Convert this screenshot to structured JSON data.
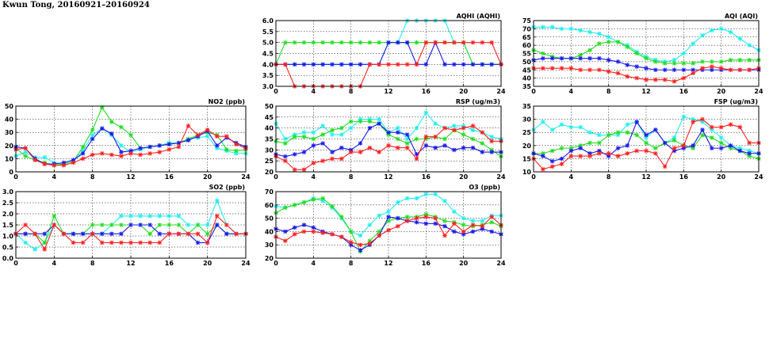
{
  "title": "Kwun Tong, 20160921–20160924",
  "colors": {
    "red": "#ff2020",
    "green": "#22dd22",
    "blue": "#1818ee",
    "cyan": "#22eeee",
    "frame": "#000000",
    "grid": "#000000"
  },
  "chart_data": [
    {
      "id": "aqhi",
      "type": "line",
      "title": "AQHI (AQHI)",
      "xlim": [
        0,
        24
      ],
      "xticks": [
        0,
        4,
        8,
        12,
        16,
        20,
        24
      ],
      "ylim": [
        3,
        6
      ],
      "yticks": [
        "3.0",
        "3.5",
        "4.0",
        "4.5",
        "5.0",
        "5.5",
        "6.0"
      ],
      "grid": true,
      "series": [
        {
          "color": "cyan",
          "values": [
            4,
            4,
            4,
            4,
            4,
            4,
            4,
            4,
            4,
            4,
            4,
            4,
            5,
            5,
            6,
            6,
            6,
            6,
            6,
            5,
            5,
            4,
            4,
            4,
            4
          ]
        },
        {
          "color": "green",
          "values": [
            4,
            5,
            5,
            5,
            5,
            5,
            5,
            5,
            5,
            5,
            5,
            5,
            5,
            5,
            5,
            5,
            5,
            5,
            5,
            5,
            5,
            4,
            4,
            4,
            4
          ]
        },
        {
          "color": "blue",
          "values": [
            4,
            4,
            4,
            4,
            4,
            4,
            4,
            4,
            4,
            4,
            4,
            4,
            5,
            5,
            5,
            4,
            4,
            5,
            4,
            4,
            4,
            4,
            4,
            4,
            4
          ]
        },
        {
          "color": "red",
          "values": [
            4,
            4,
            3,
            3,
            3,
            3,
            3,
            3,
            3,
            3,
            4,
            4,
            4,
            4,
            4,
            4,
            5,
            5,
            5,
            5,
            5,
            5,
            5,
            5,
            4
          ]
        }
      ]
    },
    {
      "id": "aqi",
      "type": "line",
      "title": "AQI (AQI)",
      "xlim": [
        0,
        24
      ],
      "xticks": [
        0,
        4,
        8,
        12,
        16,
        20,
        24
      ],
      "ylim": [
        35,
        75
      ],
      "yticks": [
        "35",
        "40",
        "45",
        "50",
        "55",
        "60",
        "65",
        "70",
        "75"
      ],
      "grid": true,
      "series": [
        {
          "color": "cyan",
          "values": [
            71,
            71,
            71,
            70,
            70,
            69,
            68,
            67,
            65,
            62,
            60,
            56,
            53,
            51,
            50,
            51,
            55,
            61,
            66,
            69,
            70,
            68,
            64,
            60,
            57
          ]
        },
        {
          "color": "green",
          "values": [
            57,
            55,
            53,
            52,
            52,
            54,
            57,
            61,
            62,
            62,
            59,
            55,
            52,
            50,
            49,
            49,
            49,
            49,
            50,
            50,
            50,
            51,
            51,
            51,
            51
          ]
        },
        {
          "color": "blue",
          "values": [
            51,
            52,
            52,
            52,
            52,
            52,
            52,
            52,
            51,
            50,
            48,
            47,
            46,
            45,
            45,
            45,
            45,
            45,
            45,
            45,
            45,
            45,
            45,
            45,
            45
          ]
        },
        {
          "color": "red",
          "values": [
            46,
            46,
            46,
            46,
            46,
            45,
            45,
            45,
            44,
            43,
            41,
            40,
            39,
            39,
            39,
            38,
            40,
            43,
            46,
            47,
            46,
            45,
            45,
            45,
            46
          ]
        }
      ]
    },
    {
      "id": "no2",
      "type": "line",
      "title": "NO2 (ppb)",
      "xlim": [
        0,
        24
      ],
      "xticks": [
        0,
        4,
        8,
        12,
        16,
        20,
        24
      ],
      "ylim": [
        0,
        50
      ],
      "yticks": [
        "0",
        "10",
        "20",
        "30",
        "40",
        "50"
      ],
      "grid": true,
      "series": [
        {
          "color": "cyan",
          "values": [
            12,
            15,
            11,
            11,
            7,
            6,
            8,
            16,
            28,
            33,
            28,
            20,
            15,
            17,
            19,
            20,
            22,
            22,
            25,
            26,
            27,
            18,
            16,
            14,
            14
          ]
        },
        {
          "color": "green",
          "values": [
            18,
            12,
            9,
            7,
            5,
            6,
            8,
            19,
            32,
            49,
            38,
            34,
            28,
            18,
            19,
            20,
            21,
            22,
            25,
            28,
            30,
            28,
            17,
            16,
            17
          ]
        },
        {
          "color": "blue",
          "values": [
            19,
            18,
            10,
            6,
            6,
            7,
            9,
            14,
            25,
            33,
            29,
            15,
            16,
            18,
            19,
            20,
            21,
            22,
            24,
            27,
            31,
            20,
            26,
            22,
            19
          ]
        },
        {
          "color": "red",
          "values": [
            17,
            18,
            9,
            6,
            5,
            5,
            7,
            10,
            13,
            14,
            13,
            12,
            14,
            13,
            14,
            15,
            17,
            19,
            35,
            28,
            32,
            27,
            27,
            21,
            18
          ]
        }
      ]
    },
    {
      "id": "rsp",
      "type": "line",
      "title": "RSP (ug/m3)",
      "xlim": [
        0,
        24
      ],
      "xticks": [
        0,
        4,
        8,
        12,
        16,
        20,
        24
      ],
      "ylim": [
        20,
        50
      ],
      "yticks": [
        "20",
        "25",
        "30",
        "35",
        "40",
        "45",
        "50"
      ],
      "grid": true,
      "series": [
        {
          "color": "cyan",
          "values": [
            42,
            35,
            37,
            38,
            38,
            41,
            37,
            37,
            40,
            44,
            44,
            44,
            38,
            40,
            35,
            40,
            47,
            42,
            40,
            41,
            41,
            39,
            38,
            36,
            35
          ]
        },
        {
          "color": "green",
          "values": [
            34,
            33,
            36,
            36,
            35,
            37,
            39,
            40,
            43,
            43,
            43,
            42,
            37,
            35,
            33,
            35,
            35,
            36,
            35,
            39,
            37,
            35,
            33,
            30,
            27
          ]
        },
        {
          "color": "blue",
          "values": [
            28,
            27,
            28,
            29,
            32,
            33,
            29,
            31,
            30,
            33,
            40,
            42,
            38,
            38,
            37,
            28,
            32,
            31,
            32,
            30,
            31,
            31,
            29,
            29,
            29
          ]
        },
        {
          "color": "red",
          "values": [
            27,
            25,
            21,
            21,
            24,
            25,
            26,
            26,
            29,
            29,
            31,
            29,
            32,
            31,
            31,
            26,
            36,
            36,
            40,
            39,
            40,
            41,
            38,
            34,
            34
          ]
        }
      ]
    },
    {
      "id": "fsp",
      "type": "line",
      "title": "FSP (ug/m3)",
      "xlim": [
        0,
        24
      ],
      "xticks": [
        0,
        4,
        8,
        12,
        16,
        20,
        24
      ],
      "ylim": [
        10,
        35
      ],
      "yticks": [
        "10",
        "15",
        "20",
        "25",
        "30",
        "35"
      ],
      "grid": true,
      "series": [
        {
          "color": "cyan",
          "values": [
            26,
            29,
            26,
            28,
            27,
            27,
            25,
            24,
            24,
            24,
            28,
            29,
            23,
            26,
            21,
            23,
            31,
            30,
            29,
            26,
            23,
            20,
            19,
            18,
            17
          ]
        },
        {
          "color": "green",
          "values": [
            17,
            17,
            18,
            19,
            19,
            20,
            21,
            21,
            24,
            25,
            25,
            24,
            21,
            19,
            21,
            22,
            20,
            19,
            24,
            23,
            21,
            19,
            18,
            16,
            15
          ]
        },
        {
          "color": "blue",
          "values": [
            17,
            16,
            14,
            15,
            18,
            19,
            17,
            18,
            16,
            19,
            20,
            29,
            24,
            26,
            21,
            18,
            19,
            20,
            26,
            19,
            19,
            20,
            18,
            17,
            17
          ]
        },
        {
          "color": "red",
          "values": [
            15,
            11,
            12,
            13,
            16,
            16,
            16,
            17,
            17,
            16,
            17,
            18,
            18,
            17,
            12,
            19,
            20,
            29,
            30,
            27,
            27,
            28,
            27,
            21,
            21
          ]
        }
      ]
    },
    {
      "id": "so2",
      "type": "line",
      "title": "SO2 (ppb)",
      "xlim": [
        0,
        24
      ],
      "xticks": [
        0,
        4,
        8,
        12,
        16,
        20,
        24
      ],
      "ylim": [
        0,
        3
      ],
      "yticks": [
        "0.0",
        "0.5",
        "1.0",
        "1.5",
        "2.0",
        "2.5",
        "3.0"
      ],
      "grid": true,
      "series": [
        {
          "color": "cyan",
          "values": [
            1.1,
            0.7,
            0.4,
            0.7,
            1.5,
            1.1,
            1.1,
            1.1,
            1.1,
            1.1,
            1.5,
            1.9,
            1.9,
            1.9,
            1.9,
            1.9,
            1.9,
            1.9,
            1.5,
            1.5,
            1.5,
            2.6,
            1.5,
            1.1,
            1.1
          ]
        },
        {
          "color": "green",
          "values": [
            1.1,
            1.1,
            1.1,
            0.7,
            1.9,
            1.1,
            1.1,
            1.1,
            1.5,
            1.5,
            1.5,
            1.5,
            1.5,
            1.5,
            1.1,
            1.5,
            1.5,
            1.5,
            1.1,
            1.5,
            1.1,
            1.5,
            1.1,
            1.1,
            1.1
          ]
        },
        {
          "color": "blue",
          "values": [
            1.1,
            1.1,
            1.1,
            1.1,
            1.5,
            1.1,
            1.1,
            1.1,
            1.1,
            1.1,
            1.1,
            1.1,
            1.5,
            1.5,
            1.5,
            1.1,
            1.1,
            1.1,
            1.1,
            0.7,
            0.7,
            1.5,
            1.1,
            1.1,
            1.1
          ]
        },
        {
          "color": "red",
          "values": [
            1.1,
            1.5,
            1.1,
            0.4,
            1.5,
            1.1,
            0.7,
            0.7,
            1.1,
            0.7,
            0.7,
            0.7,
            0.7,
            0.7,
            0.7,
            0.7,
            1.1,
            1.1,
            1.1,
            1.1,
            0.7,
            1.9,
            1.5,
            1.1,
            1.1
          ]
        }
      ]
    },
    {
      "id": "o3",
      "type": "line",
      "title": "O3 (ppb)",
      "xlim": [
        0,
        24
      ],
      "xticks": [
        0,
        4,
        8,
        12,
        16,
        20,
        24
      ],
      "ylim": [
        20,
        70
      ],
      "yticks": [
        "20",
        "30",
        "40",
        "50",
        "60",
        "70"
      ],
      "grid": true,
      "series": [
        {
          "color": "cyan",
          "values": [
            59,
            58,
            60,
            62,
            65,
            63,
            58,
            50,
            40,
            37,
            45,
            52,
            55,
            62,
            65,
            65,
            68,
            68,
            63,
            55,
            50,
            48,
            48,
            52,
            52
          ]
        },
        {
          "color": "green",
          "values": [
            54,
            58,
            60,
            62,
            64,
            65,
            59,
            51,
            40,
            25,
            33,
            40,
            48,
            50,
            51,
            51,
            53,
            51,
            48,
            47,
            45,
            44,
            45,
            47,
            44
          ]
        },
        {
          "color": "blue",
          "values": [
            42,
            40,
            43,
            45,
            43,
            40,
            38,
            36,
            30,
            26,
            30,
            37,
            51,
            50,
            48,
            47,
            46,
            46,
            44,
            40,
            38,
            40,
            42,
            40,
            38
          ]
        },
        {
          "color": "red",
          "values": [
            36,
            33,
            38,
            40,
            40,
            39,
            38,
            36,
            32,
            30,
            31,
            37,
            41,
            44,
            48,
            50,
            51,
            50,
            37,
            46,
            40,
            45,
            44,
            51,
            45
          ]
        }
      ]
    }
  ]
}
